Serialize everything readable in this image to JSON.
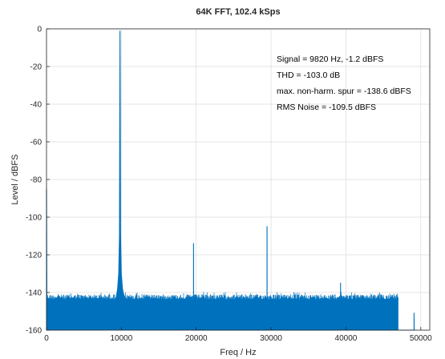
{
  "chart_data": {
    "type": "line",
    "title": "64K FFT, 102.4 kSps",
    "xlabel": "Freq / Hz",
    "ylabel": "Level / dBFS",
    "xlim": [
      0,
      51200
    ],
    "ylim": [
      -160,
      0
    ],
    "grid": true,
    "x_ticks": [
      0,
      10000,
      20000,
      30000,
      40000,
      50000
    ],
    "y_ticks": [
      0,
      -20,
      -40,
      -60,
      -80,
      -100,
      -120,
      -140,
      -160
    ],
    "annotations": [
      "Signal = 9820 Hz, -1.2 dBFS",
      "THD = -103.0 dB",
      "max. non-harm. spur = -138.6 dBFS",
      "RMS Noise = -109.5 dBFS"
    ],
    "series_color": "#0072bd",
    "series": [
      {
        "noise_floor_level": -145,
        "noise_floor_upper": -141,
        "noise_floor_end_hz": 47000,
        "points": [
          [
            0,
            -85
          ],
          [
            60,
            -160
          ],
          [
            9000,
            -145
          ],
          [
            9300,
            -143
          ],
          [
            9500,
            -138
          ],
          [
            9650,
            -130
          ],
          [
            9750,
            -110
          ],
          [
            9790,
            -40
          ],
          [
            9820,
            -1.2
          ],
          [
            9850,
            -40
          ],
          [
            9890,
            -110
          ],
          [
            9990,
            -130
          ],
          [
            10150,
            -138
          ],
          [
            10400,
            -143
          ],
          [
            10700,
            -146
          ],
          [
            19640,
            -160
          ],
          [
            19640,
            -114
          ],
          [
            19660,
            -160
          ],
          [
            29460,
            -160
          ],
          [
            29460,
            -105
          ],
          [
            29480,
            -160
          ],
          [
            39280,
            -160
          ],
          [
            39280,
            -135
          ],
          [
            39300,
            -160
          ],
          [
            49100,
            -160
          ],
          [
            49100,
            -151
          ],
          [
            49120,
            -160
          ]
        ]
      }
    ]
  }
}
